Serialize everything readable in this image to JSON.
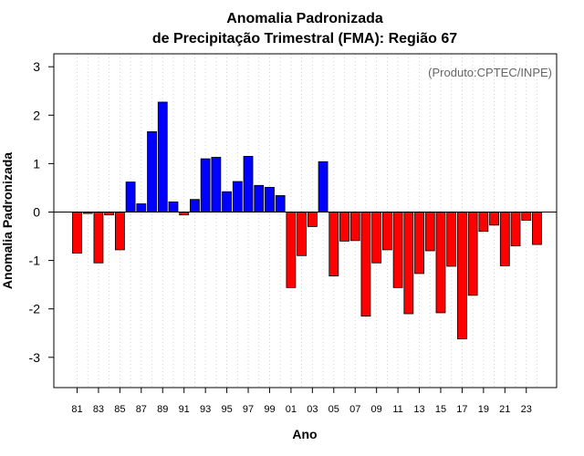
{
  "chart_data": {
    "type": "bar",
    "title_line1": "Anomalia Padronizada",
    "title_line2": "de Precipitação Trimestral (FMA): Região 67",
    "xlabel": "Ano",
    "ylabel": "Anomalia Padronizada",
    "credit": "(Produto:CPTEC/INPE)",
    "ylim": [
      -3.6,
      3.3
    ],
    "yticks": [
      "3",
      "2",
      "1",
      "0",
      "-1",
      "-2",
      "-3"
    ],
    "ytick_values": [
      3,
      2,
      1,
      0,
      -1,
      -2,
      -3
    ],
    "positive_color": "#0000ff",
    "negative_color": "#ff0000",
    "grid": true,
    "categories": [
      "81",
      "82",
      "83",
      "84",
      "85",
      "86",
      "87",
      "88",
      "89",
      "90",
      "91",
      "92",
      "93",
      "94",
      "95",
      "96",
      "97",
      "98",
      "99",
      "00",
      "01",
      "02",
      "03",
      "04",
      "05",
      "06",
      "07",
      "08",
      "09",
      "10",
      "11",
      "12",
      "13",
      "14",
      "15",
      "16",
      "17",
      "18",
      "19",
      "20",
      "21",
      "22",
      "23",
      "24"
    ],
    "xtick_labels": [
      "81",
      "83",
      "85",
      "87",
      "89",
      "91",
      "93",
      "95",
      "97",
      "99",
      "01",
      "03",
      "05",
      "07",
      "09",
      "11",
      "13",
      "15",
      "17",
      "19",
      "21",
      "23"
    ],
    "values": [
      -0.85,
      -0.03,
      -1.05,
      -0.06,
      -0.78,
      0.62,
      0.17,
      1.66,
      2.27,
      0.21,
      -0.06,
      0.26,
      1.1,
      1.13,
      0.42,
      0.63,
      1.15,
      0.55,
      0.51,
      0.34,
      -1.56,
      -0.9,
      -0.3,
      1.04,
      -1.32,
      -0.6,
      -0.59,
      -2.15,
      -1.05,
      -0.78,
      -1.56,
      -2.1,
      -1.27,
      -0.8,
      -2.08,
      -1.12,
      -2.62,
      -1.72,
      -0.4,
      -0.27,
      -1.11,
      -0.7,
      -0.17,
      -0.67
    ]
  }
}
